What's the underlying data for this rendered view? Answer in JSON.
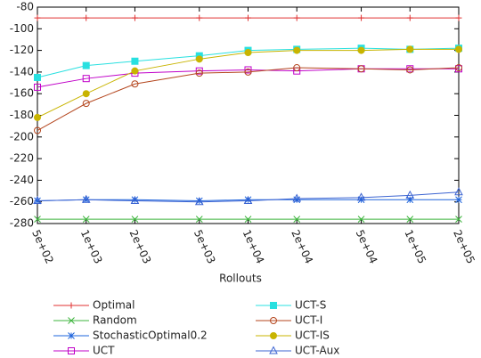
{
  "chart_data": {
    "type": "line",
    "x_label": "Rollouts",
    "xscale": "log",
    "x": [
      500,
      1000,
      2000,
      5000,
      10000,
      20000,
      50000,
      100000,
      200000
    ],
    "xlim": [
      500,
      200000
    ],
    "xticks": [
      {
        "value": 500,
        "label": "5e+02"
      },
      {
        "value": 1000,
        "label": "1e+03"
      },
      {
        "value": 2000,
        "label": "2e+03"
      },
      {
        "value": 5000,
        "label": "5e+03"
      },
      {
        "value": 10000,
        "label": "1e+04"
      },
      {
        "value": 20000,
        "label": "2e+04"
      },
      {
        "value": 50000,
        "label": "5e+04"
      },
      {
        "value": 100000,
        "label": "1e+05"
      },
      {
        "value": 200000,
        "label": "2e+05"
      }
    ],
    "ylim": [
      -280,
      -80
    ],
    "yticks": [
      -280,
      -260,
      -240,
      -220,
      -200,
      -180,
      -160,
      -140,
      -120,
      -100,
      -80
    ],
    "grid": false,
    "legend": "bottom",
    "series": [
      {
        "name": "Optimal",
        "color": "#e03232",
        "marker": "plus",
        "values": [
          -90,
          -90,
          -90,
          -90,
          -90,
          -90,
          -90,
          -90,
          -90
        ]
      },
      {
        "name": "Random",
        "color": "#3cb43c",
        "marker": "cross",
        "values": [
          -276,
          -276,
          -276,
          -276,
          -276,
          -276,
          -276,
          -276,
          -276
        ]
      },
      {
        "name": "StochasticOptimal0.2",
        "color": "#1e64dc",
        "marker": "star",
        "values": [
          -259,
          -258,
          -258,
          -259,
          -258,
          -258,
          -258,
          -258,
          -258
        ]
      },
      {
        "name": "UCT",
        "color": "#c000c8",
        "marker": "square",
        "values": [
          -154,
          -146,
          -141,
          -139,
          -138,
          -139,
          -137,
          -137,
          -137
        ]
      },
      {
        "name": "UCT-S",
        "color": "#28e0e0",
        "marker": "square-filled",
        "values": [
          -145,
          -134,
          -130,
          -125,
          -120,
          -119,
          -118,
          -119,
          -118
        ]
      },
      {
        "name": "UCT-I",
        "color": "#b4461e",
        "marker": "circle",
        "values": [
          -194,
          -169,
          -151,
          -141,
          -140,
          -136,
          -137,
          -138,
          -136
        ]
      },
      {
        "name": "UCT-IS",
        "color": "#c8b400",
        "marker": "circle-filled",
        "values": [
          -182,
          -160,
          -139,
          -128,
          -122,
          -120,
          -120,
          -119,
          -119
        ]
      },
      {
        "name": "UCT-Aux",
        "color": "#3c64d2",
        "marker": "triangle",
        "values": [
          -259,
          -258,
          -259,
          -260,
          -259,
          -257,
          -256,
          -254,
          -251
        ]
      }
    ]
  }
}
